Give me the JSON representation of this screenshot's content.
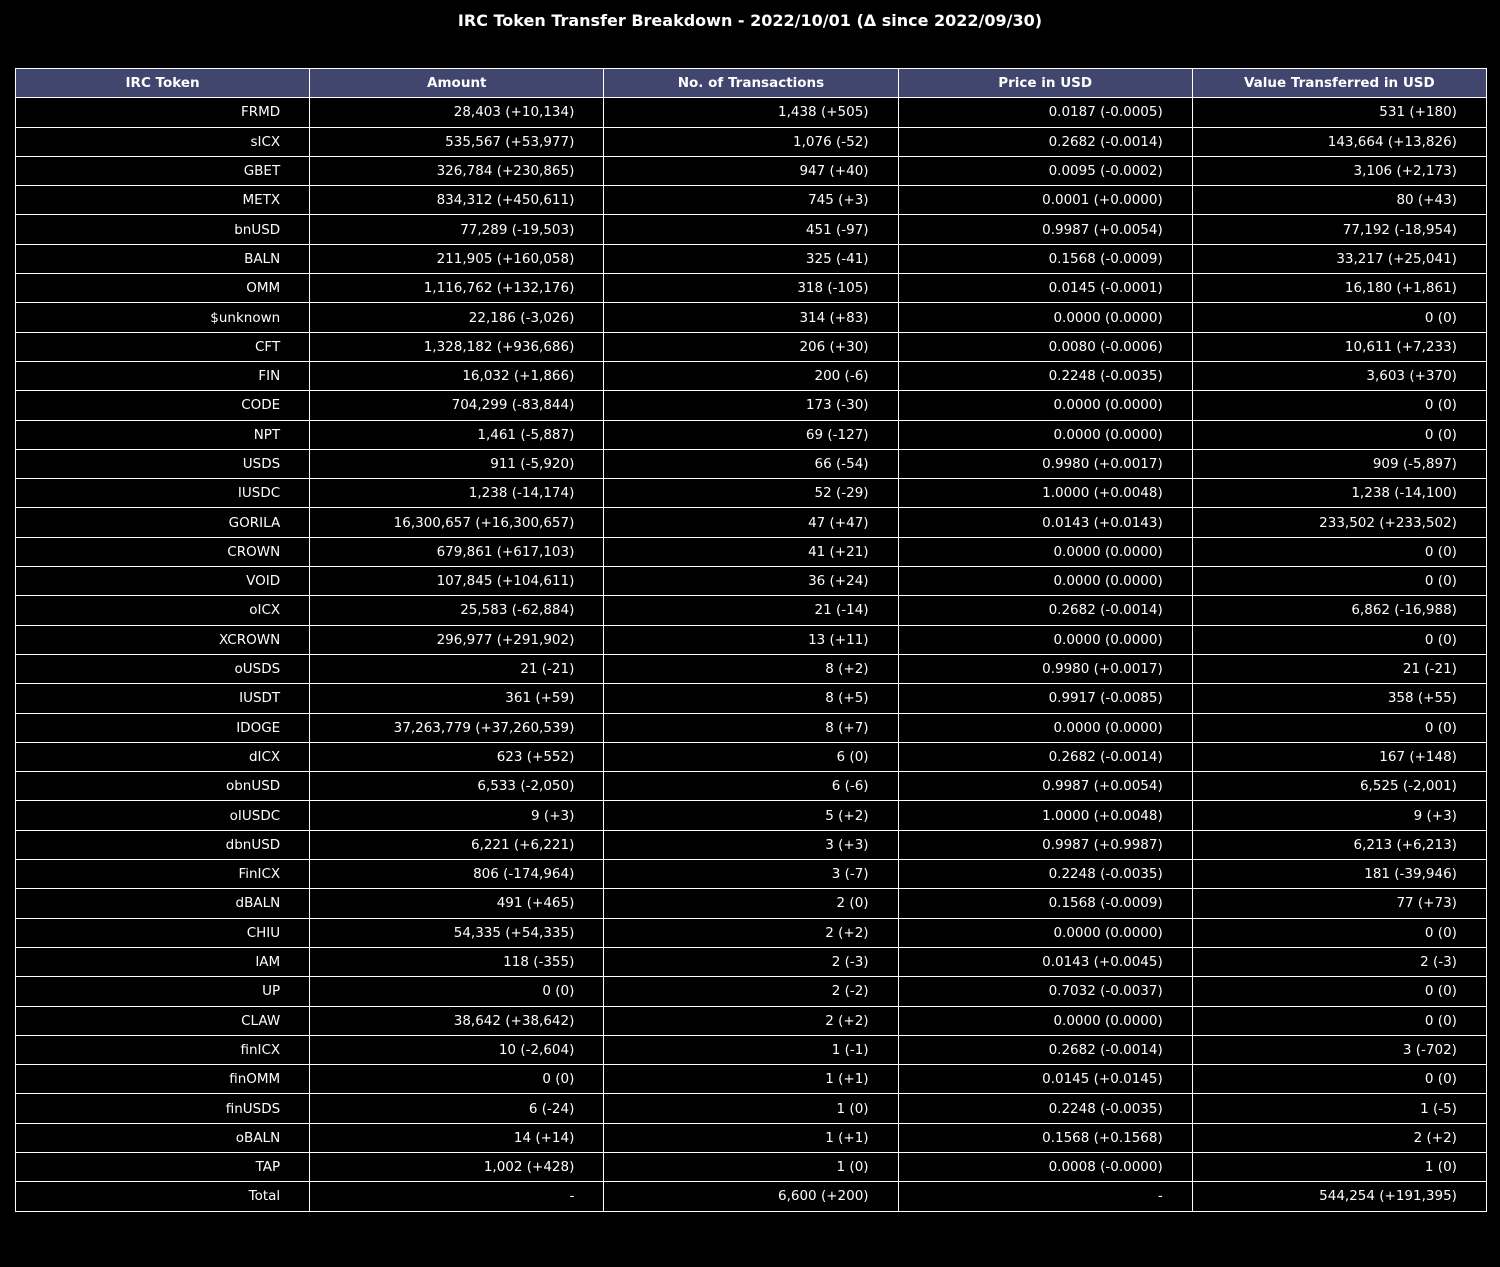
{
  "chart_data": {
    "type": "table",
    "title": "IRC Token Transfer Breakdown - 2022/10/01 (Δ since 2022/09/30)",
    "columns": [
      "IRC Token",
      "Amount",
      "No. of Transactions",
      "Price in USD",
      "Value Transferred in USD"
    ],
    "rows": [
      [
        "FRMD",
        "28,403 (+10,134)",
        "1,438 (+505)",
        "0.0187 (-0.0005)",
        "531 (+180)"
      ],
      [
        "sICX",
        "535,567 (+53,977)",
        "1,076 (-52)",
        "0.2682 (-0.0014)",
        "143,664 (+13,826)"
      ],
      [
        "GBET",
        "326,784 (+230,865)",
        "947 (+40)",
        "0.0095 (-0.0002)",
        "3,106 (+2,173)"
      ],
      [
        "METX",
        "834,312 (+450,611)",
        "745 (+3)",
        "0.0001 (+0.0000)",
        "80 (+43)"
      ],
      [
        "bnUSD",
        "77,289 (-19,503)",
        "451 (-97)",
        "0.9987 (+0.0054)",
        "77,192 (-18,954)"
      ],
      [
        "BALN",
        "211,905 (+160,058)",
        "325 (-41)",
        "0.1568 (-0.0009)",
        "33,217 (+25,041)"
      ],
      [
        "OMM",
        "1,116,762 (+132,176)",
        "318 (-105)",
        "0.0145 (-0.0001)",
        "16,180 (+1,861)"
      ],
      [
        "$unknown",
        "22,186 (-3,026)",
        "314 (+83)",
        "0.0000 (0.0000)",
        "0 (0)"
      ],
      [
        "CFT",
        "1,328,182 (+936,686)",
        "206 (+30)",
        "0.0080 (-0.0006)",
        "10,611 (+7,233)"
      ],
      [
        "FIN",
        "16,032 (+1,866)",
        "200 (-6)",
        "0.2248 (-0.0035)",
        "3,603 (+370)"
      ],
      [
        "CODE",
        "704,299 (-83,844)",
        "173 (-30)",
        "0.0000 (0.0000)",
        "0 (0)"
      ],
      [
        "NPT",
        "1,461 (-5,887)",
        "69 (-127)",
        "0.0000 (0.0000)",
        "0 (0)"
      ],
      [
        "USDS",
        "911 (-5,920)",
        "66 (-54)",
        "0.9980 (+0.0017)",
        "909 (-5,897)"
      ],
      [
        "IUSDC",
        "1,238 (-14,174)",
        "52 (-29)",
        "1.0000 (+0.0048)",
        "1,238 (-14,100)"
      ],
      [
        "GORILA",
        "16,300,657 (+16,300,657)",
        "47 (+47)",
        "0.0143 (+0.0143)",
        "233,502 (+233,502)"
      ],
      [
        "CROWN",
        "679,861 (+617,103)",
        "41 (+21)",
        "0.0000 (0.0000)",
        "0 (0)"
      ],
      [
        "VOID",
        "107,845 (+104,611)",
        "36 (+24)",
        "0.0000 (0.0000)",
        "0 (0)"
      ],
      [
        "oICX",
        "25,583 (-62,884)",
        "21 (-14)",
        "0.2682 (-0.0014)",
        "6,862 (-16,988)"
      ],
      [
        "XCROWN",
        "296,977 (+291,902)",
        "13 (+11)",
        "0.0000 (0.0000)",
        "0 (0)"
      ],
      [
        "oUSDS",
        "21 (-21)",
        "8 (+2)",
        "0.9980 (+0.0017)",
        "21 (-21)"
      ],
      [
        "IUSDT",
        "361 (+59)",
        "8 (+5)",
        "0.9917 (-0.0085)",
        "358 (+55)"
      ],
      [
        "IDOGE",
        "37,263,779 (+37,260,539)",
        "8 (+7)",
        "0.0000 (0.0000)",
        "0 (0)"
      ],
      [
        "dICX",
        "623 (+552)",
        "6 (0)",
        "0.2682 (-0.0014)",
        "167 (+148)"
      ],
      [
        "obnUSD",
        "6,533 (-2,050)",
        "6 (-6)",
        "0.9987 (+0.0054)",
        "6,525 (-2,001)"
      ],
      [
        "oIUSDC",
        "9 (+3)",
        "5 (+2)",
        "1.0000 (+0.0048)",
        "9 (+3)"
      ],
      [
        "dbnUSD",
        "6,221 (+6,221)",
        "3 (+3)",
        "0.9987 (+0.9987)",
        "6,213 (+6,213)"
      ],
      [
        "FinICX",
        "806 (-174,964)",
        "3 (-7)",
        "0.2248 (-0.0035)",
        "181 (-39,946)"
      ],
      [
        "dBALN",
        "491 (+465)",
        "2 (0)",
        "0.1568 (-0.0009)",
        "77 (+73)"
      ],
      [
        "CHIU",
        "54,335 (+54,335)",
        "2 (+2)",
        "0.0000 (0.0000)",
        "0 (0)"
      ],
      [
        "IAM",
        "118 (-355)",
        "2 (-3)",
        "0.0143 (+0.0045)",
        "2 (-3)"
      ],
      [
        "UP",
        "0 (0)",
        "2 (-2)",
        "0.7032 (-0.0037)",
        "0 (0)"
      ],
      [
        "CLAW",
        "38,642 (+38,642)",
        "2 (+2)",
        "0.0000 (0.0000)",
        "0 (0)"
      ],
      [
        "finICX",
        "10 (-2,604)",
        "1 (-1)",
        "0.2682 (-0.0014)",
        "3 (-702)"
      ],
      [
        "finOMM",
        "0 (0)",
        "1 (+1)",
        "0.0145 (+0.0145)",
        "0 (0)"
      ],
      [
        "finUSDS",
        "6 (-24)",
        "1 (0)",
        "0.2248 (-0.0035)",
        "1 (-5)"
      ],
      [
        "oBALN",
        "14 (+14)",
        "1 (+1)",
        "0.1568 (+0.1568)",
        "2 (+2)"
      ],
      [
        "TAP",
        "1,002 (+428)",
        "1 (0)",
        "0.0008 (-0.0000)",
        "1 (0)"
      ],
      [
        "Total",
        "-",
        "6,600 (+200)",
        "-",
        "544,254 (+191,395)"
      ]
    ],
    "header_color": "#40466e",
    "cell_color": "#000000",
    "text_color": "#ffffff",
    "border_color": "#ffffff"
  }
}
